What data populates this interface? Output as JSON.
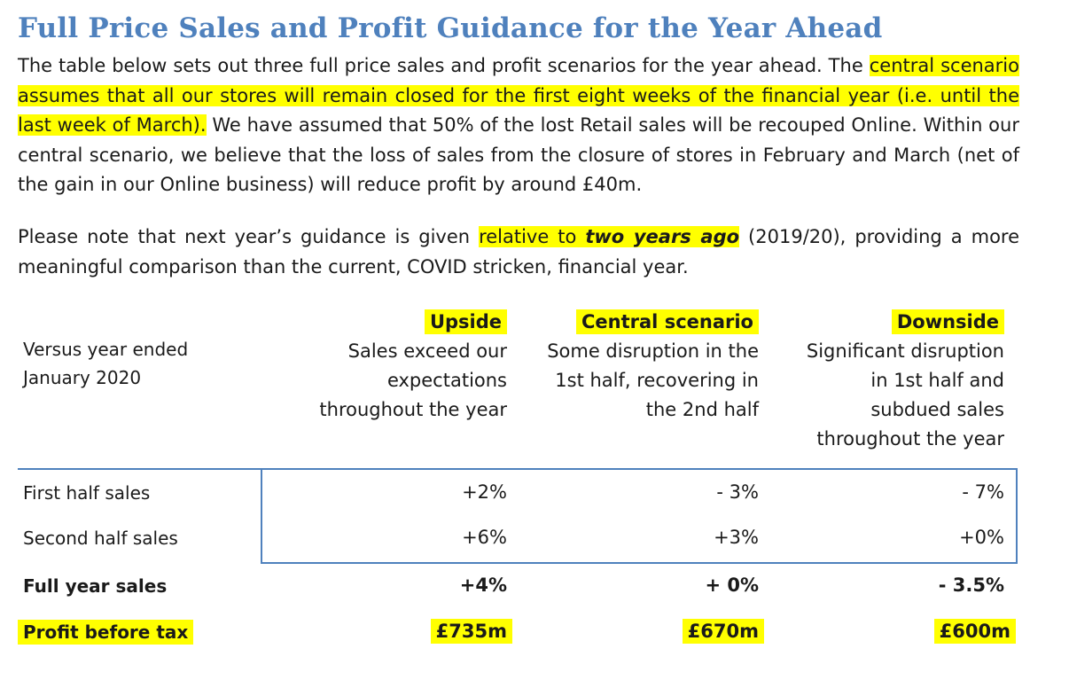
{
  "title": "Full Price Sales and Profit Guidance for the Year Ahead",
  "paragraph1": {
    "part1": "The table below sets out three full price sales and profit scenarios for the year ahead.  The ",
    "highlight": "central scenario assumes that all our stores will remain closed for the first eight weeks of the financial year (i.e. until the last week of March).",
    "part2": " We have assumed that 50% of the lost Retail sales will be recouped Online.  Within our central scenario, we believe that the loss of sales from the closure of stores in February and March (net of the gain in our Online business) will reduce profit by around £40m."
  },
  "paragraph2": {
    "part1": "Please note that next year’s guidance is given ",
    "highlight": "relative to ",
    "emphasis": "two years ago",
    "part2": " (2019/20), providing a more meaningful comparison than the current, COVID stricken, financial year."
  },
  "table": {
    "comparison_label_line1": "Versus year ended",
    "comparison_label_line2": "January 2020",
    "columns": [
      {
        "name": "Upside",
        "desc": [
          "Sales exceed our",
          "expectations",
          "throughout the year"
        ]
      },
      {
        "name": "Central scenario",
        "desc": [
          "Some disruption in the",
          "1st half, recovering in",
          "the 2nd half"
        ]
      },
      {
        "name": "Downside",
        "desc": [
          "Significant disruption",
          "in 1st half and",
          "subdued sales",
          "throughout the year"
        ]
      }
    ],
    "rows": [
      {
        "label": "First half sales",
        "values": [
          "+2%",
          "- 3%",
          "- 7%"
        ]
      },
      {
        "label": "Second half sales",
        "values": [
          "+6%",
          "+3%",
          "+0%"
        ]
      },
      {
        "label": "Full year sales",
        "values": [
          "+4%",
          "+ 0%",
          "- 3.5%"
        ]
      },
      {
        "label": "Profit before tax",
        "values": [
          "£735m",
          "£670m",
          "£600m"
        ]
      }
    ]
  },
  "colors": {
    "title": "#4f81bd",
    "highlight": "#ffff00",
    "rule": "#4f81bd"
  }
}
